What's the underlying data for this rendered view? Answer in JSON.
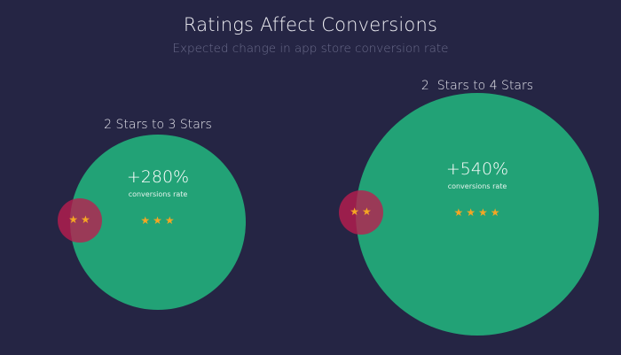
{
  "chart_data": {
    "type": "bubble",
    "title": "Ratings Affect Conversions",
    "subtitle": "Expected change in app store conversion rate",
    "comparisons": [
      {
        "label": "2 Stars to 3 Stars",
        "from_stars": 2,
        "to_stars": 3,
        "change_percent": 280,
        "value_text": "+280%",
        "metric": "conversions rate"
      },
      {
        "label": "2  Stars to 4 Stars",
        "from_stars": 2,
        "to_stars": 4,
        "change_percent": 540,
        "value_text": "+540%",
        "metric": "conversions rate"
      }
    ],
    "colors": {
      "background": "#252544",
      "increase_bubble": "#22a276",
      "baseline_bubble": "#bc1c4e",
      "stars": "#f5a623"
    }
  }
}
